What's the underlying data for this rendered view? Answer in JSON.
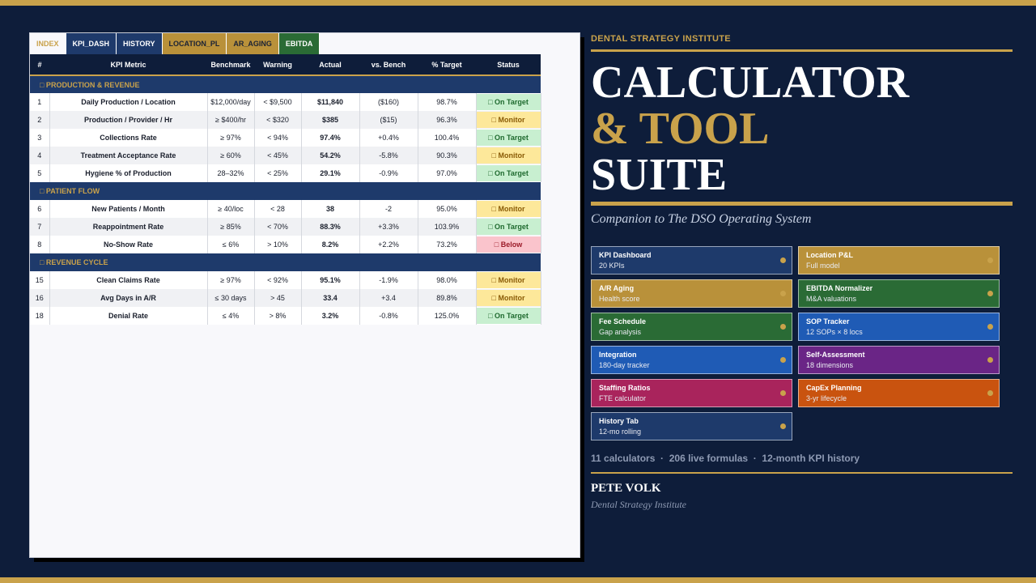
{
  "tabs": [
    {
      "label": "INDEX",
      "style": "active"
    },
    {
      "label": "KPI_DASH",
      "style": "navy"
    },
    {
      "label": "HISTORY",
      "style": "navy"
    },
    {
      "label": "LOCATION_PL",
      "style": "gold"
    },
    {
      "label": "AR_AGING",
      "style": "gold"
    },
    {
      "label": "EBITDA",
      "style": "green"
    }
  ],
  "table": {
    "headers": [
      "#",
      "KPI Metric",
      "Benchmark",
      "Warning",
      "Actual",
      "vs. Bench",
      "% Target",
      "Status"
    ],
    "sections": [
      {
        "title": "□ PRODUCTION & REVENUE",
        "rows": [
          {
            "num": "1",
            "metric": "Daily Production / Location",
            "bench": "$12,000/day",
            "warn": "< $9,500",
            "actual": "$11,840",
            "vs": "($160)",
            "pct": "98.7%",
            "status": "□ On Target",
            "status_type": "ok"
          },
          {
            "num": "2",
            "metric": "Production / Provider / Hr",
            "bench": "≥ $400/hr",
            "warn": "< $320",
            "actual": "$385",
            "vs": "($15)",
            "pct": "96.3%",
            "status": "□ Monitor",
            "status_type": "mon"
          },
          {
            "num": "3",
            "metric": "Collections Rate",
            "bench": "≥ 97%",
            "warn": "< 94%",
            "actual": "97.4%",
            "vs": "+0.4%",
            "pct": "100.4%",
            "status": "□ On Target",
            "status_type": "ok"
          },
          {
            "num": "4",
            "metric": "Treatment Acceptance Rate",
            "bench": "≥ 60%",
            "warn": "< 45%",
            "actual": "54.2%",
            "vs": "-5.8%",
            "pct": "90.3%",
            "status": "□ Monitor",
            "status_type": "mon"
          },
          {
            "num": "5",
            "metric": "Hygiene % of Production",
            "bench": "28–32%",
            "warn": "< 25%",
            "actual": "29.1%",
            "vs": "-0.9%",
            "pct": "97.0%",
            "status": "□ On Target",
            "status_type": "ok"
          }
        ]
      },
      {
        "title": "□ PATIENT FLOW",
        "rows": [
          {
            "num": "6",
            "metric": "New Patients / Month",
            "bench": "≥ 40/loc",
            "warn": "< 28",
            "actual": "38",
            "vs": "-2",
            "pct": "95.0%",
            "status": "□ Monitor",
            "status_type": "mon"
          },
          {
            "num": "7",
            "metric": "Reappointment Rate",
            "bench": "≥ 85%",
            "warn": "< 70%",
            "actual": "88.3%",
            "vs": "+3.3%",
            "pct": "103.9%",
            "status": "□ On Target",
            "status_type": "ok"
          },
          {
            "num": "8",
            "metric": "No-Show Rate",
            "bench": "≤ 6%",
            "warn": "> 10%",
            "actual": "8.2%",
            "vs": "+2.2%",
            "pct": "73.2%",
            "status": "□ Below",
            "status_type": "below"
          }
        ]
      },
      {
        "title": "□ REVENUE CYCLE",
        "rows": [
          {
            "num": "15",
            "metric": "Clean Claims Rate",
            "bench": "≥ 97%",
            "warn": "< 92%",
            "actual": "95.1%",
            "vs": "-1.9%",
            "pct": "98.0%",
            "status": "□ Monitor",
            "status_type": "mon"
          },
          {
            "num": "16",
            "metric": "Avg Days in A/R",
            "bench": "≤ 30 days",
            "warn": "> 45",
            "actual": "33.4",
            "vs": "+3.4",
            "pct": "89.8%",
            "status": "□ Monitor",
            "status_type": "mon"
          },
          {
            "num": "18",
            "metric": "Denial Rate",
            "bench": "≤ 4%",
            "warn": "> 8%",
            "actual": "3.2%",
            "vs": "-0.8%",
            "pct": "125.0%",
            "status": "□ On Target",
            "status_type": "ok"
          }
        ]
      }
    ]
  },
  "hero": {
    "institute": "DENTAL STRATEGY INSTITUTE",
    "title_line1": "CALCULATOR",
    "title_line2": "& TOOL",
    "title_line3": "SUITE",
    "subtitle": "Companion to The DSO Operating System"
  },
  "cards": [
    {
      "title": "KPI Dashboard",
      "sub": "20 KPIs",
      "color": "navy"
    },
    {
      "title": "Location P&L",
      "sub": "Full model",
      "color": "gold"
    },
    {
      "title": "A/R Aging",
      "sub": "Health score",
      "color": "gold"
    },
    {
      "title": "EBITDA Normalizer",
      "sub": "M&A valuations",
      "color": "green"
    },
    {
      "title": "Fee Schedule",
      "sub": "Gap analysis",
      "color": "green"
    },
    {
      "title": "SOP Tracker",
      "sub": "12 SOPs × 8 locs",
      "color": "blue"
    },
    {
      "title": "Integration",
      "sub": "180-day tracker",
      "color": "blue"
    },
    {
      "title": "Self-Assessment",
      "sub": "18 dimensions",
      "color": "purple"
    },
    {
      "title": "Staffing Ratios",
      "sub": "FTE calculator",
      "color": "magenta"
    },
    {
      "title": "CapEx Planning",
      "sub": "3-yr lifecycle",
      "color": "orange"
    },
    {
      "title": "History Tab",
      "sub": "12-mo rolling",
      "color": "navy"
    }
  ],
  "stats": "11 calculators  ·  206 live formulas  ·  12-month KPI history",
  "author": {
    "name": "PETE VOLK",
    "org": "Dental Strategy Institute"
  },
  "colors": {
    "navy": "#0e1d3a",
    "gold": "#c9a24b",
    "table_section": "#1e3a6b"
  }
}
